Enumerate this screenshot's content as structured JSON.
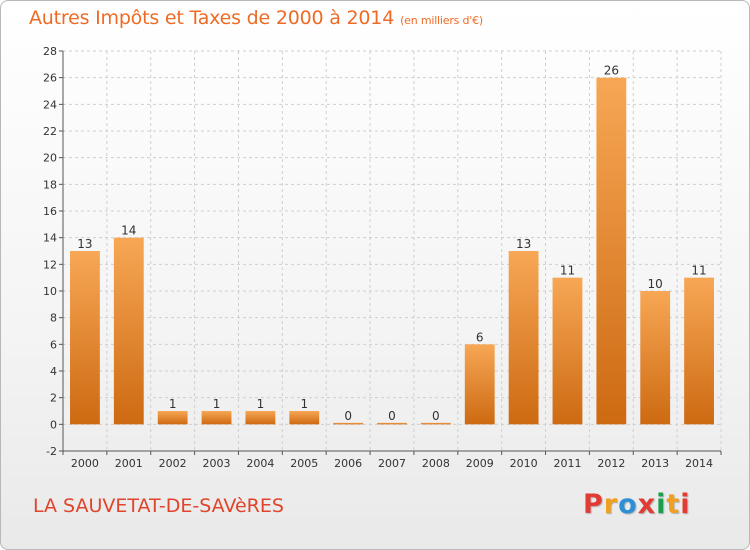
{
  "header": {
    "title": "Autres Impôts et Taxes de 2000 à 2014",
    "unit": "(en milliers d'€)"
  },
  "footer": {
    "commune": "LA SAUVETAT-DE-SAVèRES",
    "logo": "Proxiti"
  },
  "colors": {
    "title": "#ee6b26",
    "bar_light": "#f7a755",
    "bar_dark": "#cd6a12",
    "grid": "#cfcfcf",
    "logo_letters": [
      "#e23b33",
      "#f0a020",
      "#2f8fd6",
      "#e23b33",
      "#1b9f4f",
      "#f0a020",
      "#e23b33"
    ]
  },
  "chart_data": {
    "type": "bar",
    "title": "Autres Impôts et Taxes de 2000 à 2014",
    "subtitle": "(en milliers d'€)",
    "categories": [
      "2000",
      "2001",
      "2002",
      "2003",
      "2004",
      "2005",
      "2006",
      "2007",
      "2008",
      "2009",
      "2010",
      "2011",
      "2012",
      "2013",
      "2014"
    ],
    "values": [
      13,
      14,
      1,
      1,
      1,
      1,
      0,
      0,
      0,
      6,
      13,
      11,
      26,
      10,
      11
    ],
    "data_labels": [
      "13",
      "14",
      "1",
      "1",
      "1",
      "1",
      "0",
      "0",
      "0",
      "6",
      "13",
      "11",
      "26",
      "10",
      "11"
    ],
    "yticks": [
      "-2",
      "0",
      "2",
      "4",
      "6",
      "8",
      "10",
      "12",
      "14",
      "16",
      "18",
      "20",
      "22",
      "24",
      "26",
      "28"
    ],
    "ylim": [
      -2,
      28
    ],
    "grid": true,
    "legend": "none"
  }
}
